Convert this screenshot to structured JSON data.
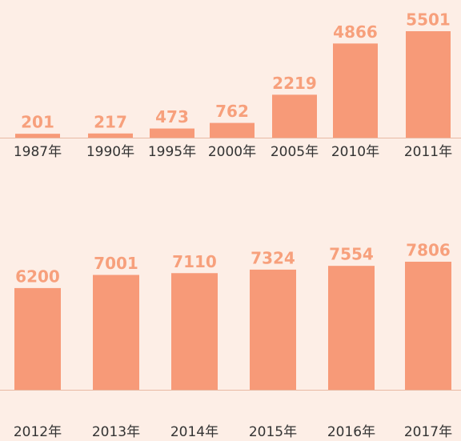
{
  "chart_data": [
    {
      "type": "bar",
      "categories": [
        "1987年",
        "1990年",
        "1995年",
        "2000年",
        "2005年",
        "2010年",
        "2011年"
      ],
      "values": [
        201,
        217,
        473,
        762,
        2219,
        4866,
        5501
      ],
      "color": "#f79a78"
    },
    {
      "type": "bar",
      "categories": [
        "2012年",
        "2013年",
        "2014年",
        "2015年",
        "2016年",
        "2017年"
      ],
      "values": [
        6200,
        7001,
        7110,
        7324,
        7554,
        7806
      ],
      "color": "#f79a78"
    }
  ]
}
